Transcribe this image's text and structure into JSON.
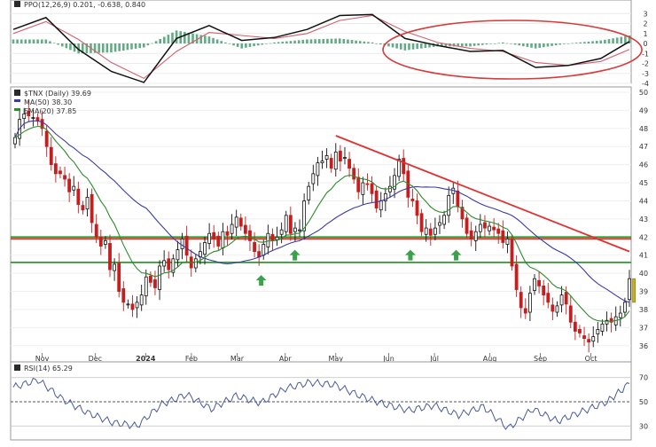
{
  "chart_data": [
    {
      "panel": "ppo",
      "type": "line",
      "label": "PPO(12,26,9) 0.201, -0.638, 0.840",
      "ylim": [
        -4,
        4
      ],
      "y_ticks": [
        3,
        2,
        1,
        0,
        -1,
        -2,
        -3,
        -4
      ],
      "series": [
        {
          "role": "ppo_line",
          "x": [
            0,
            8,
            16,
            24,
            32,
            40,
            48,
            56,
            64,
            72,
            80,
            88,
            96,
            104,
            112,
            120,
            128,
            136,
            144,
            151
          ],
          "y": [
            1.4,
            2.6,
            -0.6,
            -2.8,
            -3.9,
            0.5,
            1.8,
            0.3,
            0.6,
            1.4,
            2.8,
            2.9,
            0.5,
            -0.2,
            -0.8,
            -0.7,
            -2.4,
            -2.2,
            -1.5,
            0.2
          ]
        },
        {
          "role": "signal_line",
          "x": [
            0,
            8,
            16,
            24,
            32,
            40,
            48,
            56,
            64,
            72,
            80,
            88,
            96,
            104,
            112,
            120,
            128,
            136,
            144,
            151
          ],
          "y": [
            1.0,
            2.2,
            0.4,
            -1.9,
            -3.5,
            -0.8,
            1.1,
            0.8,
            0.5,
            1.0,
            2.3,
            2.8,
            1.2,
            0.1,
            -0.5,
            -0.8,
            -1.9,
            -2.2,
            -1.8,
            -0.6
          ]
        }
      ],
      "annotation": "ellipse highlight on recent PPO trough"
    },
    {
      "panel": "price",
      "type": "candlestick",
      "label": "$TNX (Daily) 39.69",
      "indicators": [
        {
          "name": "MA(50) 38.30",
          "color": "#3a3aa8"
        },
        {
          "name": "EMA(20) 37.85",
          "color": "#2e8b2e"
        }
      ],
      "ylim": [
        35.5,
        50
      ],
      "y_ticks": [
        50,
        49,
        48,
        47,
        46,
        45,
        44,
        43,
        42,
        41,
        40,
        39,
        38,
        37,
        36
      ],
      "x_labels": [
        {
          "label": "Nov",
          "x": 12
        },
        {
          "label": "Dec",
          "x": 34
        },
        {
          "label": "2024",
          "x": 55
        },
        {
          "label": "Feb",
          "x": 74
        },
        {
          "label": "Mar",
          "x": 93
        },
        {
          "label": "Apr",
          "x": 113
        },
        {
          "label": "May",
          "x": 134
        },
        {
          "label": "Jun",
          "x": 156
        },
        {
          "label": "Jul",
          "x": 175
        },
        {
          "label": "Aug",
          "x": 198
        },
        {
          "label": "Sep",
          "x": 219
        },
        {
          "label": "Oct",
          "x": 240
        }
      ],
      "close": [
        47.5,
        48.5,
        48.8,
        48.7,
        48.6,
        48.4,
        48.0,
        47.0,
        46.0,
        45.5,
        45.5,
        45.2,
        44.5,
        44.8,
        43.8,
        43.5,
        44.2,
        42.8,
        42.0,
        41.5,
        41.8,
        40.2,
        40.5,
        39.0,
        38.4,
        38.3,
        38.0,
        38.4,
        38.8,
        39.8,
        39.5,
        39.2,
        40.4,
        40.7,
        40.2,
        40.8,
        41.3,
        41.9,
        41.0,
        40.3,
        40.8,
        41.2,
        41.7,
        42.2,
        41.9,
        41.5,
        42.3,
        42.1,
        42.7,
        43.1,
        42.6,
        42.2,
        41.8,
        41.2,
        40.9,
        41.6,
        42.2,
        41.8,
        42.0,
        42.4,
        43.2,
        42.2,
        42.5,
        42.4,
        44.0,
        44.8,
        45.5,
        46.1,
        46.2,
        46.5,
        45.8,
        46.7,
        46.2,
        46.4,
        45.8,
        45.2,
        44.5,
        45.0,
        44.9,
        44.4,
        43.6,
        44.0,
        44.4,
        44.8,
        45.4,
        46.3,
        45.5,
        44.2,
        44.0,
        43.2,
        42.3,
        42.5,
        42.1,
        42.5,
        42.8,
        43.2,
        44.3,
        44.7,
        43.7,
        43.0,
        42.2,
        41.9,
        42.3,
        42.7,
        42.5,
        42.6,
        42.4,
        42.2,
        41.7,
        41.9,
        40.4,
        39.1,
        38.1,
        37.8,
        38.9,
        39.7,
        39.3,
        38.8,
        38.4,
        37.9,
        38.2,
        38.8,
        38.3,
        37.3,
        36.8,
        36.7,
        36.4,
        36.2,
        36.5,
        36.9,
        37.2,
        37.4,
        37.3,
        37.6,
        37.8,
        38.4,
        39.7
      ],
      "support_lines": [
        {
          "value": 42.0,
          "color": "#2e9a2e"
        },
        {
          "value": 40.6,
          "color": "#2e9a2e"
        }
      ],
      "resistance_line": {
        "value": 41.9,
        "color": "#e23030"
      },
      "trendline": {
        "from": {
          "x": 134,
          "y": 47.6
        },
        "to": {
          "x": 256,
          "y": 41.2
        },
        "color": "#e23030"
      },
      "arrows": [
        {
          "x": 103,
          "y": 39.9
        },
        {
          "x": 117,
          "y": 41.3
        },
        {
          "x": 165,
          "y": 41.3
        },
        {
          "x": 184,
          "y": 41.3
        }
      ]
    },
    {
      "panel": "rsi",
      "type": "line",
      "label": "RSI(14) 65.29",
      "ylim": [
        20,
        80
      ],
      "y_ticks": [
        70,
        50,
        30
      ],
      "reference_lines": [
        70,
        50,
        30
      ],
      "series": [
        {
          "role": "rsi",
          "x": [
            0,
            10,
            20,
            30,
            40,
            50,
            60,
            70,
            80,
            90,
            100,
            110,
            120,
            130,
            140,
            150,
            160,
            170,
            180,
            190,
            200,
            210,
            220,
            230,
            240,
            249
          ],
          "y": [
            62,
            68,
            52,
            41,
            33,
            30,
            48,
            56,
            44,
            55,
            49,
            61,
            66,
            64,
            55,
            48,
            43,
            47,
            39,
            46,
            28,
            44,
            34,
            42,
            50,
            65
          ]
        }
      ]
    }
  ]
}
